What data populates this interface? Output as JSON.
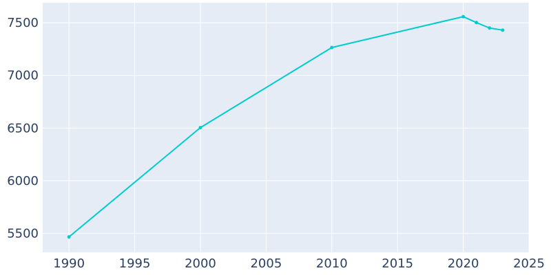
{
  "chart_data": {
    "type": "line",
    "title": "",
    "xlabel": "",
    "ylabel": "",
    "x": [
      1990,
      2000,
      2010,
      2020,
      2021,
      2022,
      2023
    ],
    "series": [
      {
        "values": [
          5466,
          6504,
          7265,
          7558,
          7502,
          7450,
          7430
        ]
      }
    ],
    "xlim": [
      1988,
      2025
    ],
    "ylim": [
      5320,
      7690
    ],
    "xticks": [
      1990,
      1995,
      2000,
      2005,
      2010,
      2015,
      2020,
      2025
    ],
    "yticks": [
      5500,
      6000,
      6500,
      7000,
      7500
    ],
    "grid": true,
    "colors": {
      "line": "#00cccc",
      "plot_background": "#e5ecf6",
      "grid": "#ffffff",
      "tick_text": "#2a3f5f"
    }
  }
}
